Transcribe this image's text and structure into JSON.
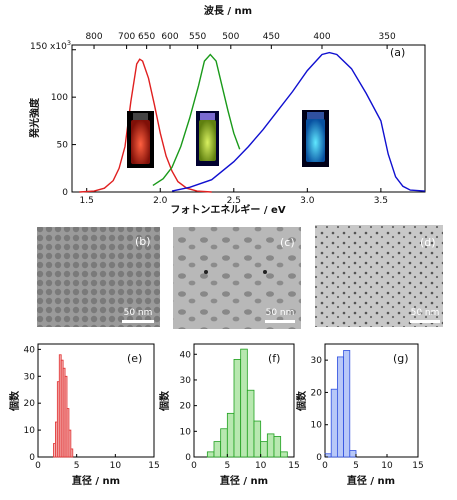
{
  "figure": {
    "top_axis_label": "波長 / nm",
    "x_axis_label": "フォトンエネルギー / eV",
    "y_axis_label": "発光強度",
    "y_unit_label": "150 x10",
    "y_unit_exp": "3",
    "panel_labels": [
      "(a)",
      "(b)",
      "(c)",
      "(d)",
      "(e)",
      "(f)",
      "(g)"
    ],
    "scale_bar": "50 nm",
    "hist_x_label": "直径 / nm",
    "hist_y_label": "個数"
  },
  "chart_data": [
    {
      "type": "line",
      "panel": "(a)",
      "xlabel": "フォトンエネルギー / eV",
      "ylabel": "発光強度",
      "top_xlabel": "波長 / nm",
      "xlim": [
        1.4,
        3.8
      ],
      "ylim": [
        0,
        155
      ],
      "x_ticks": [
        1.5,
        2.0,
        2.5,
        3.0,
        3.5
      ],
      "y_ticks": [
        0,
        50,
        100,
        150
      ],
      "y_tick_labels": [
        "0",
        "50",
        "100",
        "150 x10"
      ],
      "top_ticks_nm": [
        800,
        700,
        650,
        600,
        550,
        500,
        450,
        400,
        350
      ],
      "series": [
        {
          "color": "#e02020",
          "x": [
            1.45,
            1.55,
            1.62,
            1.68,
            1.72,
            1.76,
            1.8,
            1.84,
            1.86,
            1.88,
            1.92,
            1.96,
            2.0,
            2.04,
            2.08,
            2.12,
            2.18,
            2.25,
            2.35
          ],
          "y": [
            0,
            1,
            4,
            12,
            25,
            48,
            95,
            135,
            140,
            138,
            120,
            92,
            62,
            38,
            22,
            11,
            4,
            1,
            0
          ]
        },
        {
          "color": "#1a9a1a",
          "x": [
            1.95,
            2.02,
            2.08,
            2.14,
            2.2,
            2.26,
            2.3,
            2.34,
            2.38,
            2.42,
            2.46,
            2.5,
            2.54
          ],
          "y": [
            7,
            14,
            26,
            48,
            78,
            112,
            138,
            145,
            138,
            112,
            86,
            62,
            45
          ]
        },
        {
          "color": "#1010d0",
          "x": [
            2.08,
            2.2,
            2.35,
            2.5,
            2.6,
            2.7,
            2.8,
            2.9,
            3.0,
            3.1,
            3.15,
            3.2,
            3.3,
            3.4,
            3.5,
            3.55,
            3.6,
            3.65,
            3.7,
            3.8
          ],
          "y": [
            1,
            5,
            13,
            32,
            48,
            66,
            86,
            106,
            128,
            145,
            147,
            145,
            130,
            104,
            75,
            40,
            16,
            6,
            2,
            1
          ]
        }
      ]
    },
    {
      "type": "bar",
      "panel": "(e)",
      "color": "#e03030",
      "fill": "#f6b8b8",
      "xlabel": "直径 / nm",
      "ylabel": "個数",
      "xlim": [
        0,
        15
      ],
      "ylim": [
        0,
        42
      ],
      "x_ticks": [
        0,
        5,
        10,
        15
      ],
      "y_ticks": [
        0,
        10,
        20,
        30,
        40
      ],
      "bin_width": 0.25,
      "x": [
        2.0,
        2.25,
        2.5,
        2.75,
        3.0,
        3.25,
        3.5,
        3.75,
        4.0,
        4.25
      ],
      "values": [
        5,
        13,
        28,
        38,
        36,
        33,
        30,
        18,
        10,
        3
      ]
    },
    {
      "type": "bar",
      "panel": "(f)",
      "color": "#20a020",
      "fill": "#b8e8b0",
      "xlabel": "直径 / nm",
      "ylabel": "個数",
      "xlim": [
        0,
        15
      ],
      "ylim": [
        0,
        44
      ],
      "x_ticks": [
        0,
        5,
        10,
        15
      ],
      "y_ticks": [
        0,
        10,
        20,
        30,
        40
      ],
      "bin_width": 1.0,
      "x": [
        2,
        3,
        4,
        5,
        6,
        7,
        8,
        9,
        10,
        11,
        12,
        13
      ],
      "values": [
        2,
        6,
        11,
        17,
        38,
        42,
        26,
        14,
        6,
        9,
        8,
        2
      ]
    },
    {
      "type": "bar",
      "panel": "(g)",
      "color": "#3050e0",
      "fill": "#b8c8f8",
      "xlabel": "直径 / nm",
      "ylabel": "個数",
      "xlim": [
        0,
        15
      ],
      "ylim": [
        0,
        35
      ],
      "x_ticks": [
        0,
        5,
        10,
        15
      ],
      "y_ticks": [
        0,
        10,
        20,
        30
      ],
      "bin_width": 1.0,
      "x": [
        0,
        1,
        2,
        3,
        4
      ],
      "values": [
        1,
        21,
        31,
        33,
        2
      ]
    }
  ]
}
